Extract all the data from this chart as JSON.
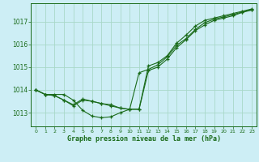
{
  "title": "Graphe pression niveau de la mer (hPa)",
  "background_color": "#cdeef5",
  "grid_color": "#a8d8c8",
  "line_color": "#1a6b1a",
  "xlim": [
    -0.5,
    23.5
  ],
  "ylim": [
    1012.4,
    1017.8
  ],
  "yticks": [
    1013,
    1014,
    1015,
    1016,
    1017
  ],
  "xticks": [
    0,
    1,
    2,
    3,
    4,
    5,
    6,
    7,
    8,
    9,
    10,
    11,
    12,
    13,
    14,
    15,
    16,
    17,
    18,
    19,
    20,
    21,
    22,
    23
  ],
  "series": [
    [
      1014.0,
      1013.8,
      1013.8,
      1013.8,
      1013.55,
      1013.1,
      1012.85,
      1012.78,
      1012.82,
      1013.0,
      1013.15,
      1014.75,
      1014.9,
      1015.1,
      1015.45,
      1015.95,
      1016.25,
      1016.65,
      1016.95,
      1017.1,
      1017.2,
      1017.3,
      1017.42,
      1017.52
    ],
    [
      1014.0,
      1013.8,
      1013.75,
      1013.55,
      1013.3,
      1013.55,
      1013.5,
      1013.4,
      1013.3,
      1013.2,
      1013.15,
      1013.15,
      1014.85,
      1015.0,
      1015.35,
      1015.85,
      1016.2,
      1016.6,
      1016.85,
      1017.05,
      1017.15,
      1017.25,
      1017.4,
      1017.5
    ],
    [
      1014.0,
      1013.8,
      1013.75,
      1013.55,
      1013.35,
      1013.6,
      1013.5,
      1013.4,
      1013.35,
      1013.2,
      1013.15,
      1013.15,
      1015.05,
      1015.2,
      1015.5,
      1016.05,
      1016.4,
      1016.8,
      1017.05,
      1017.15,
      1017.25,
      1017.35,
      1017.45,
      1017.55
    ]
  ]
}
